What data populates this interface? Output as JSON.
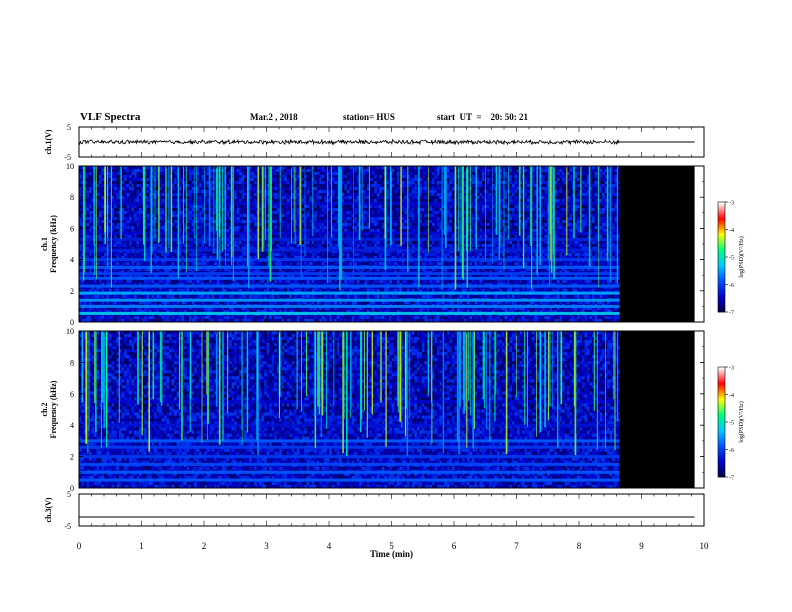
{
  "header": {
    "title": "VLF Spectra",
    "date": "Mar.2 , 2018",
    "station": "station= HUS",
    "start": "start  UT  =    20: 50: 21"
  },
  "colors": {
    "waveform": "#000000",
    "no_data": "#000000",
    "colormap": [
      "#00003c",
      "#0000c8",
      "#0050ff",
      "#00c8ff",
      "#00ff80",
      "#ffff00",
      "#ff0000",
      "#ffffff"
    ]
  },
  "chart_data": [
    {
      "type": "line",
      "panel": "ch1-waveform",
      "ylabel": "ch.1(V)",
      "ylim": [
        -5,
        5
      ],
      "yticks": [
        "5",
        "-5"
      ],
      "xlim": [
        0,
        10
      ],
      "series": [
        {
          "x": [
            0,
            8.65
          ],
          "y_mean": 0,
          "y_amplitude": 0.8
        },
        {
          "x": [
            8.65,
            9.85
          ],
          "y_mean": 0,
          "y_amplitude": 0
        }
      ]
    },
    {
      "type": "heatmap",
      "panel": "ch1-spectrogram",
      "ylabel": "ch.1\nFrequency (kHz)",
      "ylim": [
        0,
        10
      ],
      "yticks": [
        "0",
        "2",
        "4",
        "6",
        "8",
        "10"
      ],
      "xlim": [
        0,
        10
      ],
      "data_end_min": 8.65,
      "no_data_range_min": [
        8.65,
        9.85
      ],
      "colorbar": {
        "label": "log(PSD)(V²/Hz)",
        "ticks": [
          "-3",
          "-4",
          "-5",
          "-6",
          "-7"
        ],
        "range": [
          -7,
          -3
        ]
      },
      "bands_khz": [
        {
          "f": 0.55,
          "level": -5.2
        },
        {
          "f": 1.0,
          "level": -5.6
        },
        {
          "f": 1.4,
          "level": -5.5
        },
        {
          "f": 1.85,
          "level": -5.4
        },
        {
          "f": 2.3,
          "level": -5.8
        },
        {
          "f": 2.8,
          "level": -5.8
        },
        {
          "f": 3.1,
          "level": -6.0
        },
        {
          "f": 3.5,
          "level": -5.8
        },
        {
          "f": 4.0,
          "level": -6.0
        },
        {
          "f": 4.6,
          "level": -6.2
        },
        {
          "f": 5.3,
          "level": -6.2
        },
        {
          "f": 5.7,
          "level": -6.4
        },
        {
          "f": 7.6,
          "level": -6.4
        }
      ]
    },
    {
      "type": "heatmap",
      "panel": "ch2-spectrogram",
      "ylabel": "ch.2\nFrequency (kHz)",
      "ylim": [
        0,
        10
      ],
      "yticks": [
        "0",
        "2",
        "4",
        "6",
        "8",
        "10"
      ],
      "xlim": [
        0,
        10
      ],
      "data_end_min": 8.65,
      "no_data_range_min": [
        8.65,
        9.85
      ],
      "colorbar": {
        "label": "log(PSD)(V²/Hz)",
        "ticks": [
          "-3",
          "-4",
          "-5",
          "-6",
          "-7"
        ],
        "range": [
          -7,
          -3
        ]
      },
      "bands_khz": [
        {
          "f": 0.5,
          "level": -5.8
        },
        {
          "f": 1.0,
          "level": -5.8
        },
        {
          "f": 1.5,
          "level": -5.9
        },
        {
          "f": 2.0,
          "level": -6.0
        },
        {
          "f": 2.6,
          "level": -6.0
        },
        {
          "f": 3.0,
          "level": -5.8
        },
        {
          "f": 4.0,
          "level": -6.3
        },
        {
          "f": 5.5,
          "level": -6.4
        }
      ]
    },
    {
      "type": "line",
      "panel": "ch3-waveform",
      "ylabel": "ch.3(V)",
      "ylim": [
        -5,
        5
      ],
      "yticks": [
        "5",
        "-5"
      ],
      "xlim": [
        0,
        10
      ],
      "series": [
        {
          "x": [
            0,
            9.85
          ],
          "y_mean": -2.2,
          "y_amplitude": 0
        }
      ]
    }
  ],
  "xaxis": {
    "label": "Time (min)",
    "ticks": [
      "0",
      "1",
      "2",
      "3",
      "4",
      "5",
      "6",
      "7",
      "8",
      "9",
      "10"
    ]
  }
}
